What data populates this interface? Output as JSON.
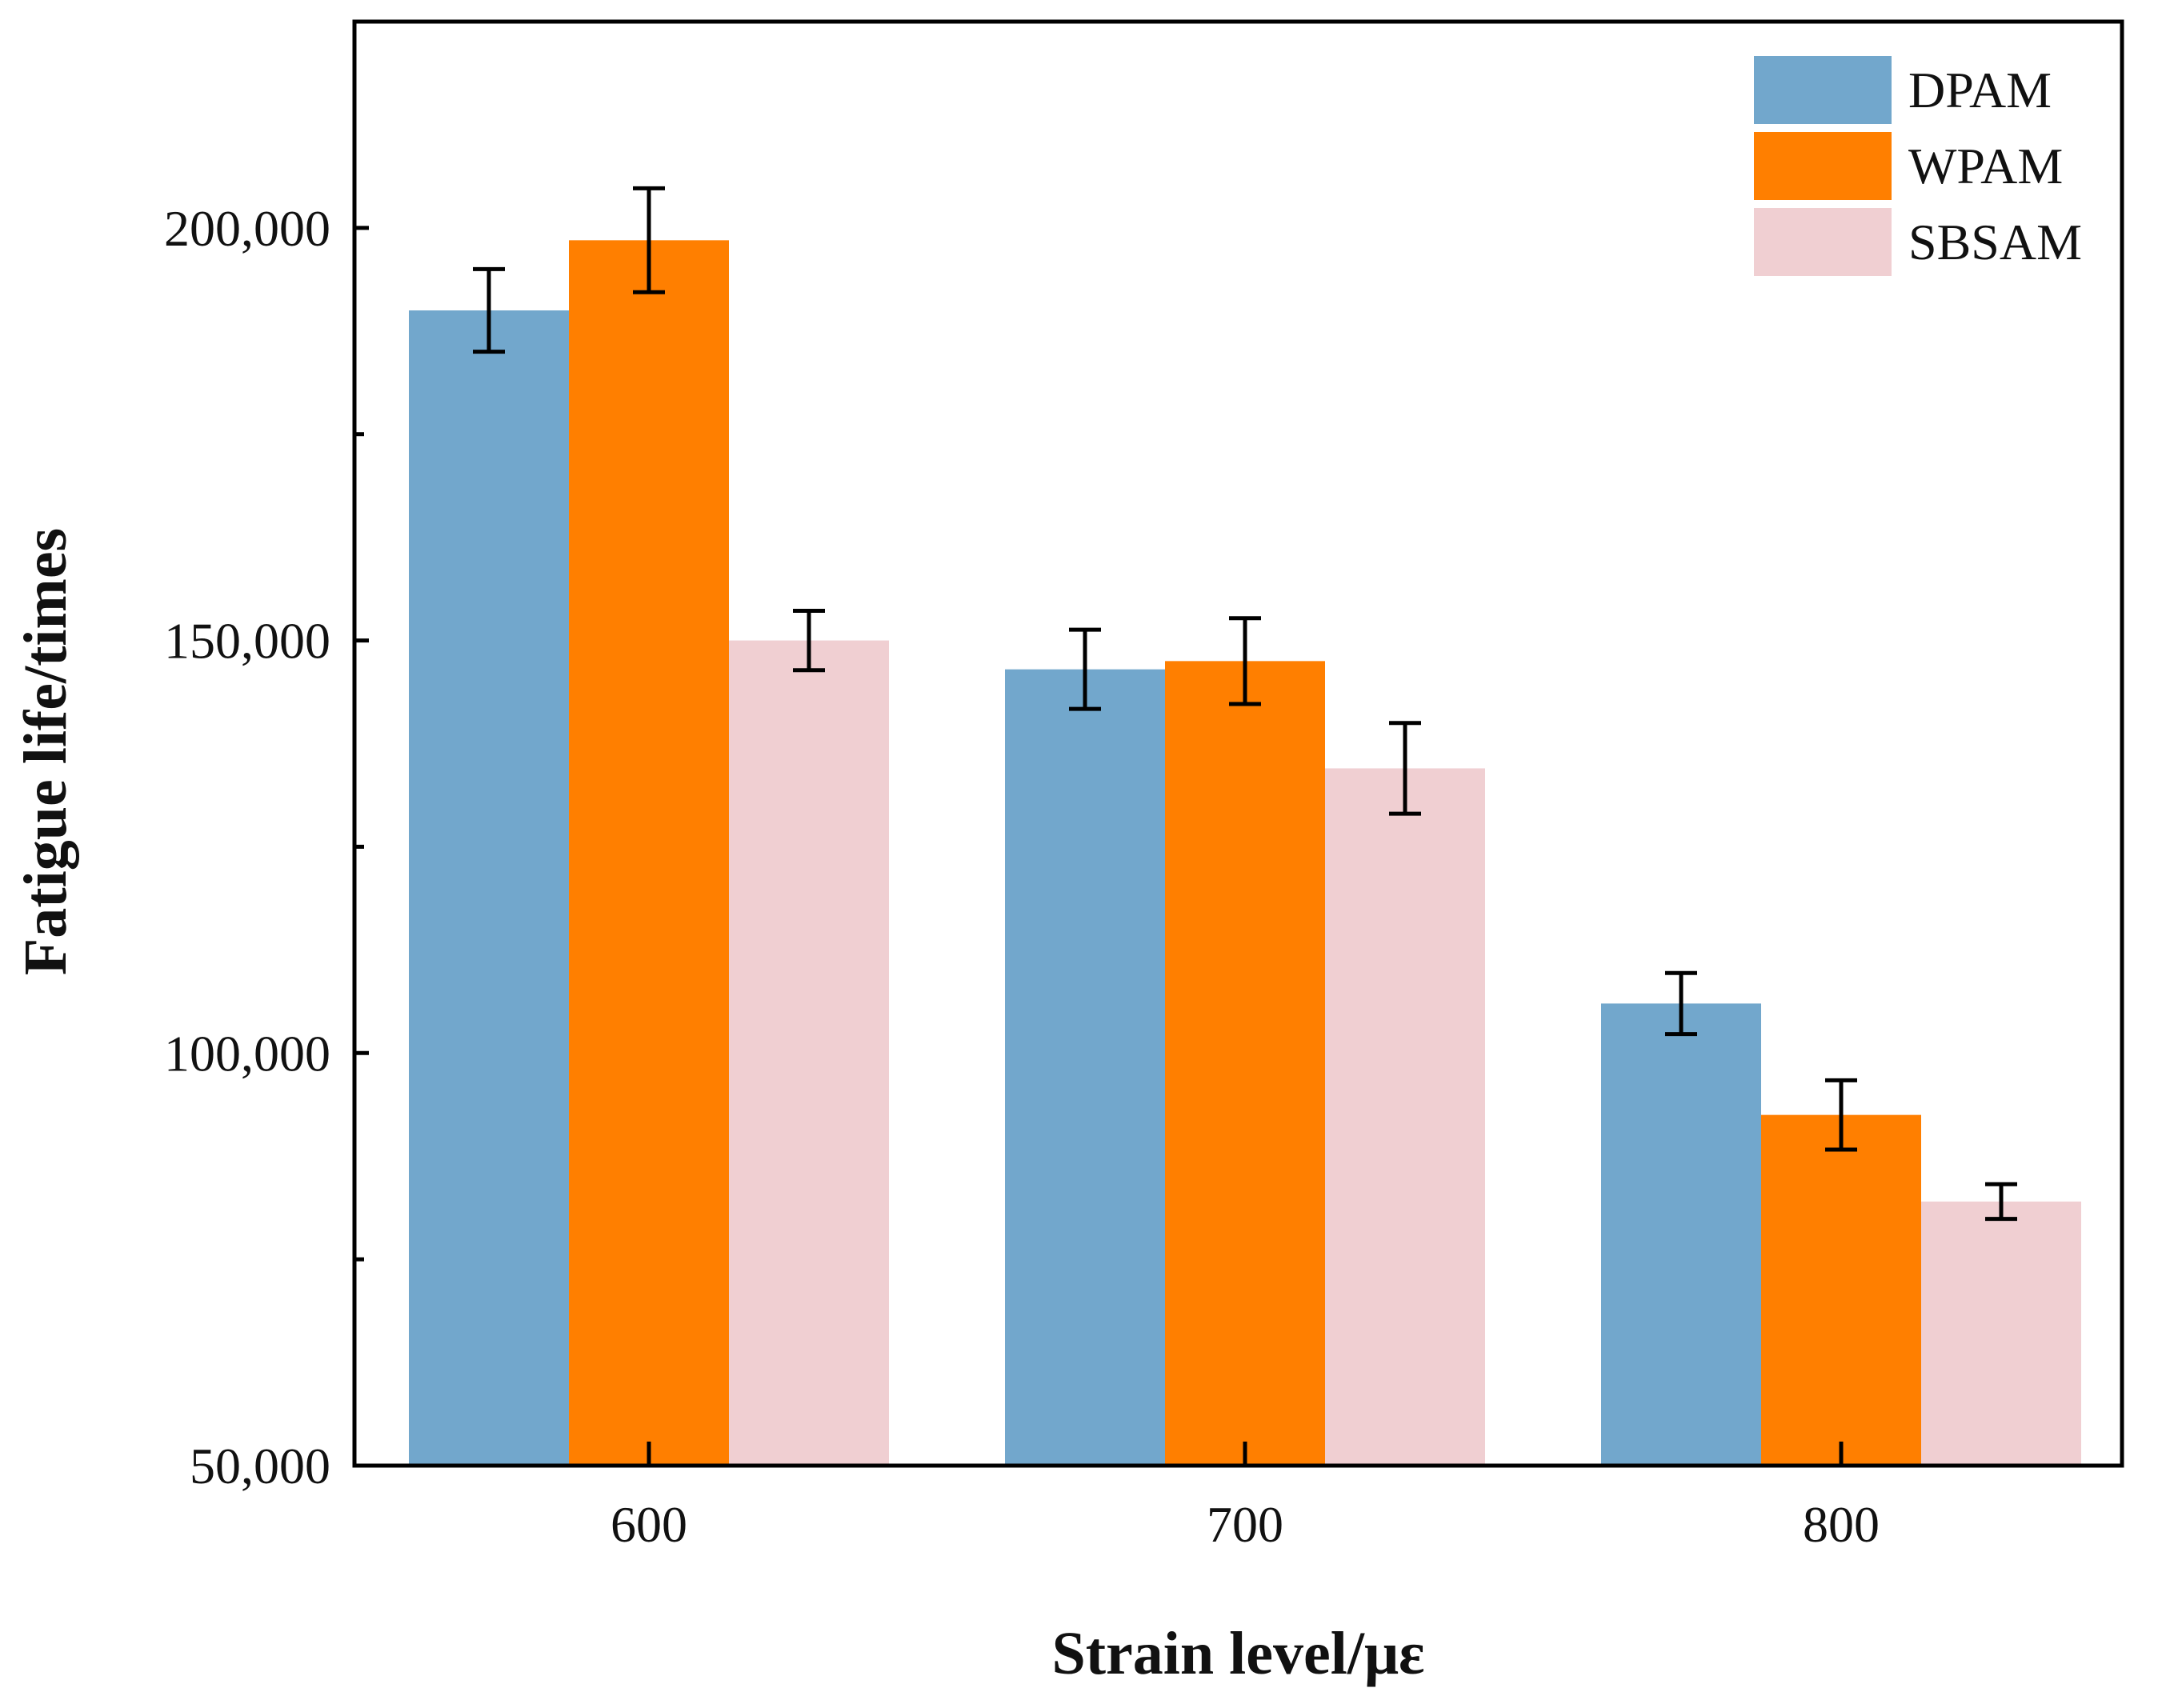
{
  "chart_data": {
    "type": "bar",
    "title": "",
    "xlabel": "Strain level/με",
    "ylabel": "Fatigue life/times",
    "categories": [
      "600",
      "700",
      "800"
    ],
    "ylim": [
      50000,
      225000
    ],
    "yticks": [
      {
        "value": 50000,
        "label": "50,000"
      },
      {
        "value": 100000,
        "label": "100,000"
      },
      {
        "value": 150000,
        "label": "150,000"
      },
      {
        "value": 200000,
        "label": "200,000"
      }
    ],
    "yminor": [
      75000,
      125000,
      175000
    ],
    "legend_position": "top-right",
    "series": [
      {
        "name": "DPAM",
        "color": "#72A7CC",
        "values": [
          190000,
          146500,
          106000
        ],
        "errors": [
          5000,
          4800,
          3700
        ]
      },
      {
        "name": "WPAM",
        "color": "#FF7F00",
        "values": [
          198500,
          147500,
          92500
        ],
        "errors": [
          6300,
          5200,
          4200
        ]
      },
      {
        "name": "SBSAM",
        "color": "#F0CFD2",
        "values": [
          150000,
          134500,
          82000
        ],
        "errors": [
          3600,
          5500,
          2100
        ]
      }
    ]
  }
}
